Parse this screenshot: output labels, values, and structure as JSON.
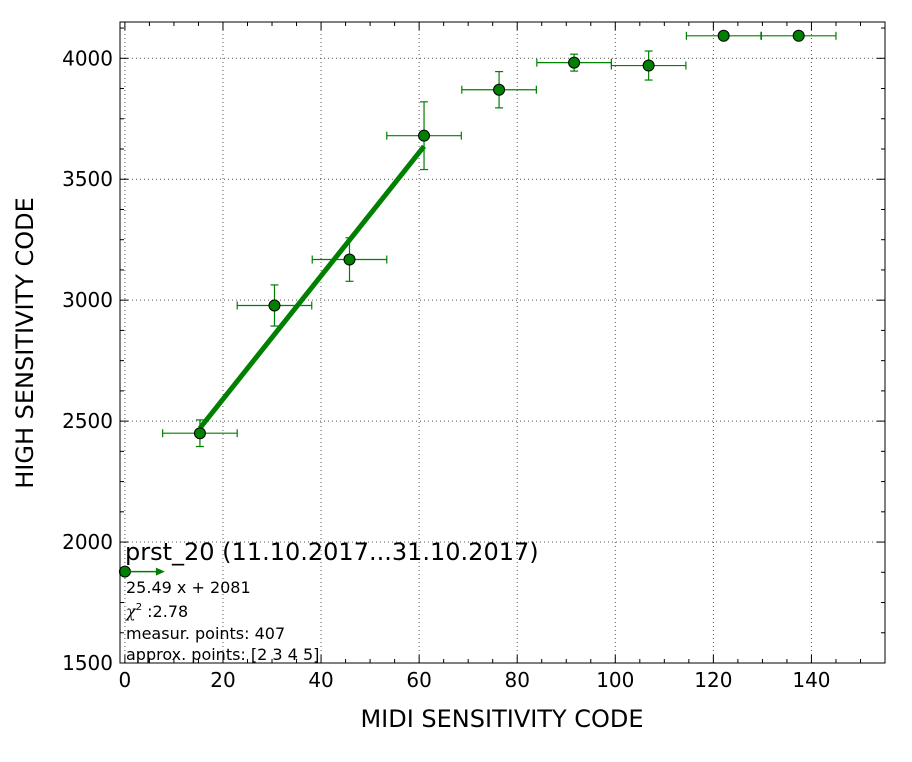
{
  "chart_data": {
    "type": "scatter",
    "xlabel": "MIDI SENSITIVITY CODE",
    "ylabel": "HIGH SENSITIVITY CODE",
    "xlim": [
      -1,
      155
    ],
    "ylim": [
      1500,
      4150
    ],
    "xticks": [
      0,
      20,
      40,
      60,
      80,
      100,
      120,
      140
    ],
    "yticks": [
      1500,
      2000,
      2500,
      3000,
      3500,
      4000
    ],
    "grid": true,
    "points": [
      {
        "x": 15.3,
        "y": 2450,
        "xerr": 7.6,
        "yerr": 55
      },
      {
        "x": 30.5,
        "y": 2978,
        "xerr": 7.6,
        "yerr": 85
      },
      {
        "x": 45.8,
        "y": 3168,
        "xerr": 7.6,
        "yerr": 90
      },
      {
        "x": 61.0,
        "y": 3680,
        "xerr": 7.6,
        "yerr": 140
      },
      {
        "x": 76.3,
        "y": 3870,
        "xerr": 7.6,
        "yerr": 75
      },
      {
        "x": 91.6,
        "y": 3982,
        "xerr": 7.6,
        "yerr": 35
      },
      {
        "x": 106.8,
        "y": 3970,
        "xerr": 7.6,
        "yerr": 60
      },
      {
        "x": 122.1,
        "y": 4093,
        "xerr": 7.6,
        "yerr": 0
      },
      {
        "x": 137.4,
        "y": 4093,
        "xerr": 7.6,
        "yerr": 0
      },
      {
        "x": 0,
        "y": 1878,
        "xerr": 0,
        "yerr": 0
      }
    ],
    "fit": {
      "slope": 25.49,
      "intercept": 2081,
      "x_from": 15.3,
      "x_to": 61.0
    },
    "title": "prst_20 (11.10.2017...31.10.2017)",
    "annotations": {
      "equation": "25.49 x + 2081",
      "chi2_symbol": "χ",
      "chi2_value": " :2.78",
      "measur_points": "measur. points: 407",
      "approx_points": "approx. points: [2 3 4 5]"
    },
    "colors": {
      "series": "#008000",
      "marker": "#008000",
      "grid": "#555555"
    }
  }
}
